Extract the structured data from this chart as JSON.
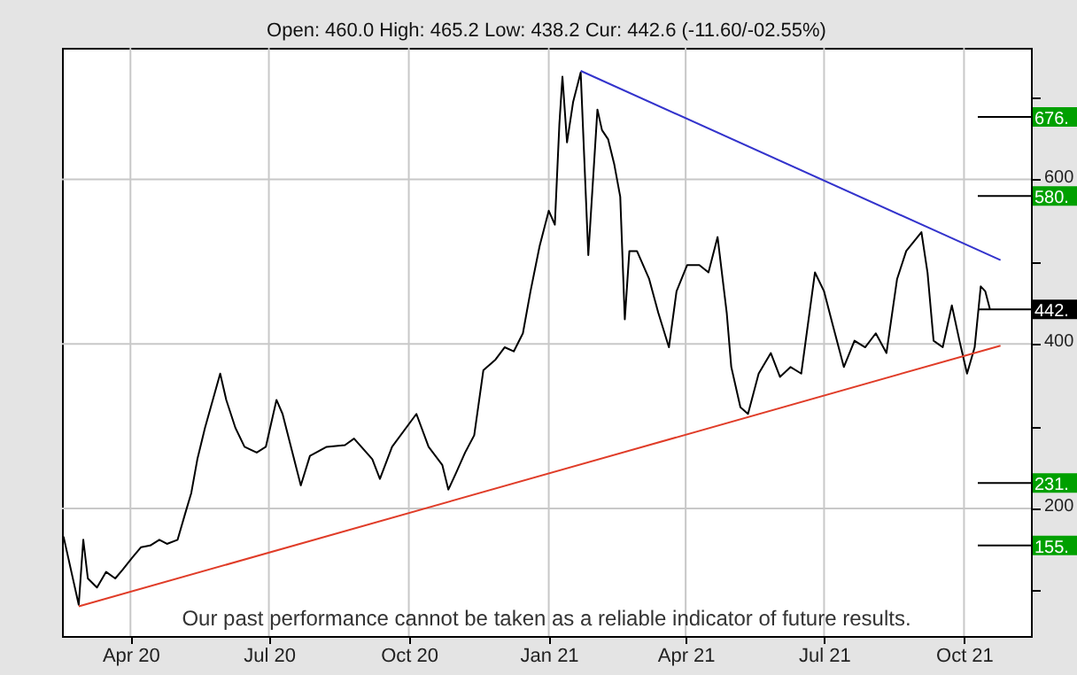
{
  "chart_data": {
    "type": "line",
    "title": "Open: 460.0 High: 465.2 Low: 438.2 Cur: 442.6 (-11.60/-02.55%)",
    "xlim": [
      "2020-02-16",
      "2021-11-14"
    ],
    "ylim": [
      45,
      760
    ],
    "xticks": [
      {
        "value": "2020-04-01",
        "label": "Apr 20"
      },
      {
        "value": "2020-07-01",
        "label": "Jul 20"
      },
      {
        "value": "2020-10-01",
        "label": "Oct 20"
      },
      {
        "value": "2021-01-01",
        "label": "Jan 21"
      },
      {
        "value": "2021-04-01",
        "label": "Apr 21"
      },
      {
        "value": "2021-07-01",
        "label": "Jul 21"
      },
      {
        "value": "2021-10-01",
        "label": "Oct 21"
      }
    ],
    "yticks": [
      {
        "value": 100,
        "label": null
      },
      200,
      {
        "value": 300,
        "label": null
      },
      400,
      {
        "value": 500,
        "label": null
      },
      600,
      {
        "value": 700,
        "label": null
      }
    ],
    "grid": true,
    "marker": "none",
    "line_style": "solid",
    "series": [
      {
        "type": "line",
        "color": "#000000",
        "x": [
          "2020-02-17",
          "2020-02-27",
          "2020-03-01",
          "2020-03-04",
          "2020-03-10",
          "2020-03-16",
          "2020-03-22",
          "2020-03-27",
          "2020-04-02",
          "2020-04-08",
          "2020-04-14",
          "2020-04-20",
          "2020-04-25",
          "2020-05-02",
          "2020-05-07",
          "2020-05-11",
          "2020-05-15",
          "2020-05-20",
          "2020-05-30",
          "2020-06-03",
          "2020-06-09",
          "2020-06-15",
          "2020-06-23",
          "2020-06-29",
          "2020-07-06",
          "2020-07-10",
          "2020-07-22",
          "2020-07-28",
          "2020-08-08",
          "2020-08-20",
          "2020-08-26",
          "2020-09-07",
          "2020-09-12",
          "2020-09-20",
          "2020-10-06",
          "2020-10-14",
          "2020-10-23",
          "2020-10-27",
          "2020-11-01",
          "2020-11-07",
          "2020-11-13",
          "2020-11-19",
          "2020-11-27",
          "2020-12-03",
          "2020-12-09",
          "2020-12-15",
          "2020-12-20",
          "2020-12-26",
          "2021-01-01",
          "2021-01-05",
          "2021-01-08",
          "2021-01-10",
          "2021-01-13",
          "2021-01-17",
          "2021-01-22",
          "2021-01-27",
          "2021-02-02",
          "2021-02-05",
          "2021-02-09",
          "2021-02-13",
          "2021-02-17",
          "2021-02-20",
          "2021-02-23",
          "2021-02-28",
          "2021-03-08",
          "2021-03-14",
          "2021-03-21",
          "2021-03-26",
          "2021-04-02",
          "2021-04-10",
          "2021-04-16",
          "2021-04-22",
          "2021-04-28",
          "2021-05-01",
          "2021-05-07",
          "2021-05-12",
          "2021-05-19",
          "2021-05-27",
          "2021-06-02",
          "2021-06-09",
          "2021-06-16",
          "2021-06-25",
          "2021-07-01",
          "2021-07-07",
          "2021-07-14",
          "2021-07-21",
          "2021-07-28",
          "2021-08-04",
          "2021-08-11",
          "2021-08-18",
          "2021-08-24",
          "2021-09-03",
          "2021-09-07",
          "2021-09-11",
          "2021-09-17",
          "2021-09-23",
          "2021-09-28",
          "2021-10-03",
          "2021-10-08",
          "2021-10-12",
          "2021-10-15",
          "2021-10-18"
        ],
        "values": [
          166,
          83,
          162,
          115,
          104,
          123,
          115,
          126,
          140,
          153,
          155,
          162,
          157,
          162,
          194,
          219,
          260,
          298,
          364,
          332,
          298,
          275,
          268,
          275,
          332,
          315,
          228,
          264,
          275,
          277,
          285,
          260,
          236,
          275,
          315,
          275,
          253,
          223,
          243,
          268,
          289,
          368,
          381,
          396,
          391,
          413,
          464,
          519,
          562,
          545,
          668,
          725,
          645,
          694,
          730,
          508,
          685,
          660,
          649,
          619,
          579,
          430,
          513,
          513,
          479,
          438,
          396,
          464,
          496,
          496,
          487,
          530,
          438,
          372,
          323,
          315,
          364,
          389,
          360,
          372,
          364,
          487,
          464,
          421,
          372,
          404,
          396,
          413,
          389,
          479,
          513,
          536,
          487,
          404,
          396,
          447,
          404,
          364,
          396,
          470,
          464,
          442.6
        ]
      },
      {
        "type": "line",
        "color": "#3333cc",
        "x": [
          "2021-01-22",
          "2021-10-25"
        ],
        "values": [
          732,
          502
        ]
      },
      {
        "type": "line",
        "color": "#e03c28",
        "x": [
          "2020-02-27",
          "2021-10-25"
        ],
        "values": [
          81,
          398
        ]
      }
    ],
    "ref_lines": [
      {
        "axis": "y",
        "value": 676,
        "label": "676."
      },
      {
        "axis": "y",
        "value": 580,
        "label": "580."
      },
      {
        "axis": "y",
        "value": 442,
        "label": "442."
      },
      {
        "axis": "y",
        "value": 231,
        "label": "231."
      },
      {
        "axis": "y",
        "value": 155,
        "label": "155."
      }
    ],
    "annotations": [
      "Our past performance cannot be taken as a reliable indicator of future results."
    ]
  }
}
